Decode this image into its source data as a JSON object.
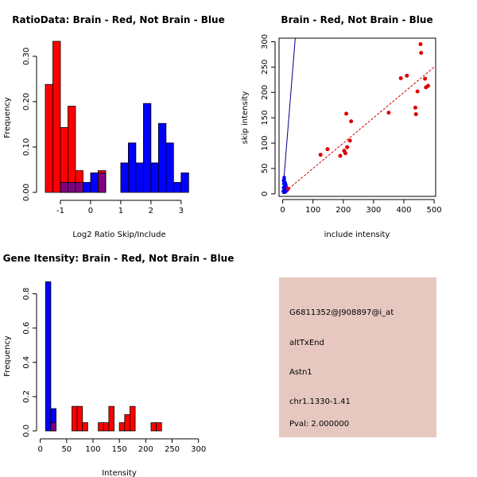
{
  "colors": {
    "red": "#ff0000",
    "blue": "#0000ff",
    "overlap": "#7f007f",
    "line_blue": "#00008b",
    "line_red": "#cc0000",
    "point_red": "#dd0000",
    "info_bg": "#e6c8c0",
    "pval_text": "#8b0000"
  },
  "chart_data": [
    {
      "id": "ratio",
      "type": "bar",
      "title": "RatioData: Brain - Red, Not Brain - Blue",
      "xlabel": "Log2 Ratio Skip/Include",
      "ylabel": "Frequency",
      "xlim": [
        -1.5,
        3.4
      ],
      "ylim": [
        0,
        0.34
      ],
      "xticks": [
        -1,
        0,
        1,
        2,
        3
      ],
      "xtick_labels": [
        "-1",
        "0",
        "1",
        "2",
        "3"
      ],
      "yticks": [
        0.0,
        0.1,
        0.2,
        0.3
      ],
      "ytick_labels": [
        "0.00",
        "0.10",
        "0.20",
        "0.30"
      ],
      "bin_start": -1.5,
      "bin_width": 0.25,
      "series": [
        {
          "name": "Brain",
          "color": "red",
          "values": [
            0.238,
            0.333,
            0.143,
            0.19,
            0.048,
            0.0,
            0.0,
            0.048,
            0.0,
            0.0,
            0.0,
            0.0,
            0.0,
            0.0,
            0.0,
            0.0,
            0.0,
            0.0,
            0.0,
            0.0
          ]
        },
        {
          "name": "Not Brain",
          "color": "blue",
          "values": [
            0.0,
            0.0,
            0.022,
            0.022,
            0.022,
            0.022,
            0.043,
            0.043,
            0.0,
            0.0,
            0.065,
            0.109,
            0.065,
            0.196,
            0.065,
            0.152,
            0.109,
            0.022,
            0.043,
            0.0
          ]
        }
      ]
    },
    {
      "id": "scatter",
      "type": "scatter",
      "title": "Brain - Red, Not Brain - Blue",
      "xlabel": "include intensity",
      "ylabel": "skip intensity",
      "xlim": [
        -12,
        505
      ],
      "ylim": [
        -5,
        307
      ],
      "xticks": [
        0,
        100,
        200,
        300,
        400,
        500
      ],
      "xtick_labels": [
        "0",
        "100",
        "200",
        "300",
        "400",
        "500"
      ],
      "yticks": [
        0,
        50,
        100,
        150,
        200,
        250,
        300
      ],
      "ytick_labels": [
        "0",
        "50",
        "100",
        "150",
        "200",
        "250",
        "300"
      ],
      "red_points": [
        [
          125,
          77
        ],
        [
          148,
          88
        ],
        [
          190,
          75
        ],
        [
          203,
          85
        ],
        [
          207,
          80
        ],
        [
          210,
          158
        ],
        [
          213,
          92
        ],
        [
          222,
          105
        ],
        [
          226,
          143
        ],
        [
          350,
          160
        ],
        [
          390,
          228
        ],
        [
          410,
          233
        ],
        [
          438,
          170
        ],
        [
          440,
          157
        ],
        [
          445,
          202
        ],
        [
          455,
          295
        ],
        [
          457,
          278
        ],
        [
          470,
          227
        ],
        [
          473,
          210
        ],
        [
          480,
          213
        ],
        [
          18,
          10
        ]
      ],
      "blue_points": [
        [
          2,
          5
        ],
        [
          3,
          12
        ],
        [
          4,
          20
        ],
        [
          5,
          28
        ],
        [
          6,
          8
        ],
        [
          7,
          15
        ],
        [
          8,
          22
        ],
        [
          9,
          4
        ],
        [
          10,
          18
        ],
        [
          12,
          10
        ],
        [
          5,
          32
        ],
        [
          3,
          26
        ],
        [
          11,
          14
        ],
        [
          6,
          3
        ],
        [
          14,
          7
        ]
      ],
      "blue_line": {
        "slope": 7.4,
        "intercept": 0
      },
      "red_line": {
        "slope": 0.5,
        "intercept": 0
      }
    },
    {
      "id": "intensity",
      "type": "bar",
      "title": "Gene Itensity: Brain - Red, Not Brain - Blue",
      "xlabel": "Intensity",
      "ylabel": "Frequency",
      "xlim": [
        -10,
        305
      ],
      "ylim": [
        0,
        0.9
      ],
      "xticks": [
        0,
        50,
        100,
        150,
        200,
        250,
        300
      ],
      "xtick_labels": [
        "0",
        "50",
        "100",
        "150",
        "200",
        "250",
        "300"
      ],
      "yticks": [
        0.0,
        0.2,
        0.4,
        0.6,
        0.8
      ],
      "ytick_labels": [
        "0.0",
        "0.2",
        "0.4",
        "0.6",
        "0.8"
      ],
      "bin_start": 10,
      "bin_width": 10,
      "series": [
        {
          "name": "Brain",
          "color": "red",
          "values": [
            0.0,
            0.048,
            0.0,
            0.0,
            0.0,
            0.143,
            0.143,
            0.048,
            0.0,
            0.0,
            0.048,
            0.048,
            0.143,
            0.0,
            0.048,
            0.095,
            0.143,
            0.0,
            0.0,
            0.0,
            0.048,
            0.048
          ]
        },
        {
          "name": "Not Brain",
          "color": "blue",
          "values": [
            0.87,
            0.13,
            0.0,
            0.0,
            0.0,
            0.0,
            0.0,
            0.0,
            0.0,
            0.0,
            0.0,
            0.0,
            0.0,
            0.0,
            0.0,
            0.0,
            0.0,
            0.0,
            0.0,
            0.0,
            0.0,
            0.0
          ]
        }
      ]
    }
  ],
  "info": {
    "probe": "G6811352@J908897@i_at",
    "event": "altTxEnd",
    "gene": "Astn1",
    "location": "chr1.1330-1.41",
    "pval": "Pval: 2.000000"
  }
}
